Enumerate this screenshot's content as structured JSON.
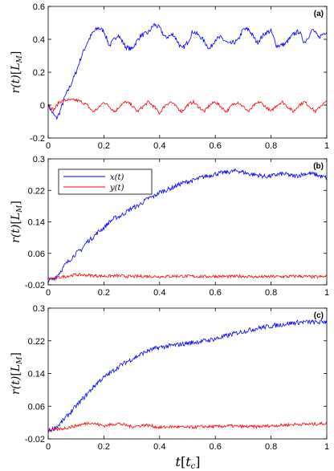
{
  "chart_data": [
    {
      "type": "line",
      "panel_label": "(a)",
      "ylabel": "r(t)[L_M]",
      "xlabel": "",
      "xlim": [
        0,
        1
      ],
      "ylim": [
        -0.2,
        0.6
      ],
      "xticks": [
        "0",
        "0.2",
        "0.4",
        "0.6",
        "0.8",
        "1"
      ],
      "yticks": [
        "-0.2",
        "0",
        "0.2",
        "0.4",
        "0.6"
      ],
      "legend": null,
      "series": [
        {
          "name": "x(t)",
          "color": "#0000ff",
          "x": [
            0,
            0.01,
            0.02,
            0.03,
            0.04,
            0.05,
            0.06,
            0.08,
            0.1,
            0.12,
            0.14,
            0.16,
            0.18,
            0.2,
            0.22,
            0.25,
            0.28,
            0.3,
            0.33,
            0.36,
            0.38,
            0.4,
            0.42,
            0.45,
            0.48,
            0.5,
            0.52,
            0.55,
            0.58,
            0.6,
            0.62,
            0.65,
            0.68,
            0.7,
            0.72,
            0.75,
            0.78,
            0.8,
            0.82,
            0.85,
            0.88,
            0.9,
            0.92,
            0.95,
            0.97,
            1.0
          ],
          "y": [
            0.0,
            -0.03,
            -0.06,
            -0.08,
            -0.05,
            0.0,
            0.05,
            0.12,
            0.2,
            0.3,
            0.38,
            0.44,
            0.47,
            0.45,
            0.36,
            0.43,
            0.35,
            0.34,
            0.42,
            0.44,
            0.49,
            0.47,
            0.41,
            0.43,
            0.34,
            0.38,
            0.45,
            0.41,
            0.34,
            0.4,
            0.41,
            0.37,
            0.39,
            0.46,
            0.46,
            0.38,
            0.44,
            0.45,
            0.36,
            0.37,
            0.43,
            0.45,
            0.38,
            0.46,
            0.41,
            0.45
          ]
        },
        {
          "name": "y(t)",
          "color": "#ff0000",
          "x": [
            0,
            0.02,
            0.04,
            0.06,
            0.08,
            0.1,
            0.12,
            0.14,
            0.16,
            0.18,
            0.2,
            0.22,
            0.24,
            0.26,
            0.28,
            0.3,
            0.32,
            0.34,
            0.36,
            0.38,
            0.4,
            0.42,
            0.44,
            0.46,
            0.48,
            0.5,
            0.52,
            0.54,
            0.56,
            0.58,
            0.6,
            0.62,
            0.64,
            0.66,
            0.68,
            0.7,
            0.72,
            0.74,
            0.76,
            0.78,
            0.8,
            0.82,
            0.84,
            0.86,
            0.88,
            0.9,
            0.92,
            0.94,
            0.96,
            0.98,
            1.0
          ],
          "y": [
            0.0,
            -0.03,
            0.02,
            0.03,
            0.03,
            0.03,
            0.02,
            0.0,
            -0.04,
            -0.02,
            0.02,
            -0.01,
            -0.04,
            0.0,
            0.02,
            0.0,
            -0.04,
            -0.01,
            0.02,
            -0.01,
            -0.05,
            0.0,
            0.02,
            -0.01,
            -0.04,
            0.0,
            0.02,
            -0.01,
            -0.04,
            0.0,
            0.02,
            -0.01,
            -0.04,
            0.0,
            0.02,
            -0.01,
            -0.04,
            0.0,
            0.02,
            -0.01,
            -0.04,
            0.0,
            0.02,
            -0.01,
            -0.04,
            0.0,
            0.02,
            -0.01,
            -0.04,
            0.0,
            0.02
          ]
        }
      ]
    },
    {
      "type": "line",
      "panel_label": "(b)",
      "ylabel": "r(t)[L_M]",
      "xlabel": "",
      "xlim": [
        0,
        1
      ],
      "ylim": [
        -0.02,
        0.3
      ],
      "xticks": [
        "0",
        "0.2",
        "0.4",
        "0.6",
        "0.8",
        "1"
      ],
      "yticks": [
        "-0.02",
        "0.06",
        "0.14",
        "0.22",
        "0.3"
      ],
      "legend": {
        "position": "top-left",
        "entries": [
          "x(t)",
          "y(t)"
        ]
      },
      "series": [
        {
          "name": "x(t)",
          "color": "#0000ff",
          "x": [
            0,
            0.02,
            0.04,
            0.06,
            0.08,
            0.1,
            0.12,
            0.14,
            0.16,
            0.18,
            0.2,
            0.22,
            0.24,
            0.26,
            0.28,
            0.3,
            0.32,
            0.34,
            0.36,
            0.38,
            0.4,
            0.42,
            0.44,
            0.46,
            0.48,
            0.5,
            0.52,
            0.54,
            0.56,
            0.58,
            0.6,
            0.62,
            0.64,
            0.66,
            0.68,
            0.7,
            0.72,
            0.74,
            0.76,
            0.78,
            0.8,
            0.82,
            0.84,
            0.86,
            0.88,
            0.9,
            0.92,
            0.94,
            0.96,
            0.98,
            1.0
          ],
          "y": [
            -0.01,
            -0.005,
            0.01,
            0.03,
            0.045,
            0.06,
            0.07,
            0.09,
            0.1,
            0.115,
            0.125,
            0.14,
            0.15,
            0.155,
            0.165,
            0.175,
            0.18,
            0.19,
            0.2,
            0.205,
            0.215,
            0.22,
            0.225,
            0.232,
            0.238,
            0.242,
            0.245,
            0.25,
            0.255,
            0.258,
            0.262,
            0.264,
            0.266,
            0.268,
            0.27,
            0.266,
            0.262,
            0.26,
            0.258,
            0.255,
            0.256,
            0.26,
            0.262,
            0.26,
            0.256,
            0.258,
            0.262,
            0.263,
            0.26,
            0.255,
            0.252
          ]
        },
        {
          "name": "y(t)",
          "color": "#ff0000",
          "x": [
            0,
            0.05,
            0.1,
            0.15,
            0.2,
            0.25,
            0.3,
            0.35,
            0.4,
            0.45,
            0.5,
            0.55,
            0.6,
            0.65,
            0.7,
            0.75,
            0.8,
            0.85,
            0.9,
            0.95,
            1.0
          ],
          "y": [
            -0.005,
            0.0,
            0.006,
            0.004,
            0.002,
            0.003,
            0.001,
            0.002,
            0.001,
            0.002,
            0.002,
            0.001,
            0.002,
            0.001,
            0.002,
            0.0,
            0.001,
            0.001,
            0.002,
            0.0,
            0.001
          ]
        }
      ]
    },
    {
      "type": "line",
      "panel_label": "(c)",
      "ylabel": "r(t)[L_M]",
      "xlabel": "t[t_c]",
      "xlim": [
        0,
        1
      ],
      "ylim": [
        -0.02,
        0.3
      ],
      "xticks": [
        "0",
        "0.2",
        "0.4",
        "0.6",
        "0.8",
        "1"
      ],
      "yticks": [
        "-0.02",
        "0.06",
        "0.14",
        "0.22",
        "0.3"
      ],
      "legend": null,
      "series": [
        {
          "name": "x(t)",
          "color": "#0000ff",
          "x": [
            0,
            0.02,
            0.04,
            0.06,
            0.08,
            0.1,
            0.12,
            0.14,
            0.16,
            0.18,
            0.2,
            0.22,
            0.24,
            0.26,
            0.28,
            0.3,
            0.32,
            0.34,
            0.36,
            0.38,
            0.4,
            0.42,
            0.44,
            0.46,
            0.48,
            0.5,
            0.52,
            0.54,
            0.56,
            0.58,
            0.6,
            0.62,
            0.64,
            0.66,
            0.68,
            0.7,
            0.72,
            0.74,
            0.76,
            0.78,
            0.8,
            0.82,
            0.84,
            0.86,
            0.88,
            0.9,
            0.92,
            0.94,
            0.96,
            0.98,
            1.0
          ],
          "y": [
            0.0,
            0.005,
            0.015,
            0.03,
            0.045,
            0.06,
            0.075,
            0.09,
            0.105,
            0.12,
            0.13,
            0.14,
            0.15,
            0.16,
            0.168,
            0.175,
            0.182,
            0.19,
            0.196,
            0.2,
            0.204,
            0.206,
            0.208,
            0.21,
            0.212,
            0.214,
            0.216,
            0.218,
            0.22,
            0.222,
            0.225,
            0.228,
            0.232,
            0.236,
            0.24,
            0.243,
            0.246,
            0.249,
            0.252,
            0.254,
            0.256,
            0.258,
            0.26,
            0.262,
            0.264,
            0.265,
            0.266,
            0.266,
            0.265,
            0.266,
            0.267
          ]
        },
        {
          "name": "y(t)",
          "color": "#ff0000",
          "x": [
            0,
            0.05,
            0.1,
            0.15,
            0.2,
            0.25,
            0.3,
            0.35,
            0.4,
            0.45,
            0.5,
            0.55,
            0.6,
            0.65,
            0.7,
            0.75,
            0.8,
            0.85,
            0.9,
            0.95,
            1.0
          ],
          "y": [
            0.0,
            0.005,
            0.012,
            0.02,
            0.012,
            0.018,
            0.01,
            0.014,
            0.008,
            0.01,
            0.008,
            0.01,
            0.01,
            0.012,
            0.01,
            0.01,
            0.012,
            0.014,
            0.016,
            0.016,
            0.018
          ]
        }
      ]
    }
  ]
}
